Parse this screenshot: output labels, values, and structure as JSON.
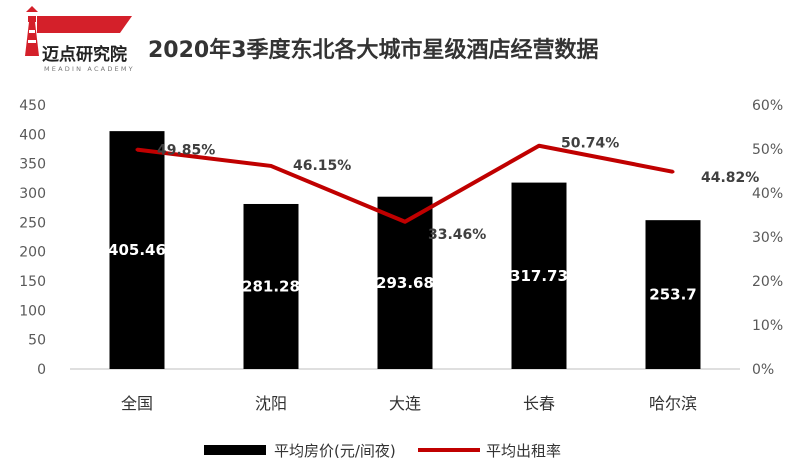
{
  "logo": {
    "name": "迈点研究院",
    "subtitle": "MEADIN ACADEMY"
  },
  "chart_data": {
    "type": "bar+line",
    "title": "2020年3季度东北各大城市星级酒店经营数据",
    "categories": [
      "全国",
      "沈阳",
      "大连",
      "长春",
      "哈尔滨"
    ],
    "bar_series": {
      "name": "平均房价(元/间夜)",
      "values": [
        405.46,
        281.28,
        293.68,
        317.73,
        253.7
      ],
      "labels": [
        "405.46",
        "281.28",
        "293.68",
        "317.73",
        "253.7"
      ],
      "color": "#000000"
    },
    "line_series": {
      "name": "平均出租率",
      "values": [
        49.85,
        46.15,
        33.46,
        50.74,
        44.82
      ],
      "labels": [
        "49.85%",
        "46.15%",
        "33.46%",
        "50.74%",
        "44.82%"
      ],
      "color": "#c00000"
    },
    "y_left": {
      "min": 0,
      "max": 450,
      "step": 50,
      "ticks": [
        "0",
        "50",
        "100",
        "150",
        "200",
        "250",
        "300",
        "350",
        "400",
        "450"
      ]
    },
    "y_right": {
      "min": 0,
      "max": 60,
      "step": 10,
      "ticks": [
        "0%",
        "10%",
        "20%",
        "30%",
        "40%",
        "50%",
        "60%"
      ]
    },
    "grid": false,
    "legend_position": "bottom"
  }
}
